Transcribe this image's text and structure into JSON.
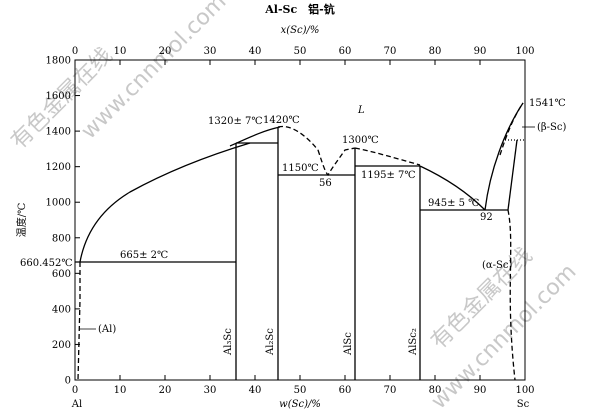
{
  "title": "Al-Sc　铝-钪",
  "top_axis_label": "x(Sc)/%",
  "bottom_axis_label": "w(Sc)/%",
  "y_axis_label": "温度/℃",
  "element_left": "Al",
  "element_right": "Sc",
  "y_ticks": [
    0,
    200,
    400,
    600,
    800,
    1000,
    1200,
    1400,
    1600,
    1800
  ],
  "x_ticks": [
    0,
    10,
    20,
    30,
    40,
    50,
    60,
    70,
    80,
    90,
    100
  ],
  "labels": {
    "al_melt": "660.452℃",
    "eutectic_665": "665± 2℃",
    "al3sc_peritectic": "1320± 7℃",
    "al2sc_melt": "1420℃",
    "alsc_melt": "1300℃",
    "eut_1150": "1150℃",
    "eut_1150_comp": "56",
    "per_1195": "1195± 7℃",
    "eut_945": "945± 5 ℃",
    "eut_945_comp": "92",
    "sc_melt": "1541℃",
    "liquid": "L",
    "beta_sc": "(β-Sc)",
    "alpha_sc": "(α-Sc)",
    "al_phase": "(Al)",
    "al3sc": "Al₃Sc",
    "al2sc": "Al₂Sc",
    "alsc": "AlSc",
    "alsc2": "AlSc₂"
  },
  "watermark": {
    "text1": "有色金属在线",
    "text2": "www.cnnmol.com"
  }
}
